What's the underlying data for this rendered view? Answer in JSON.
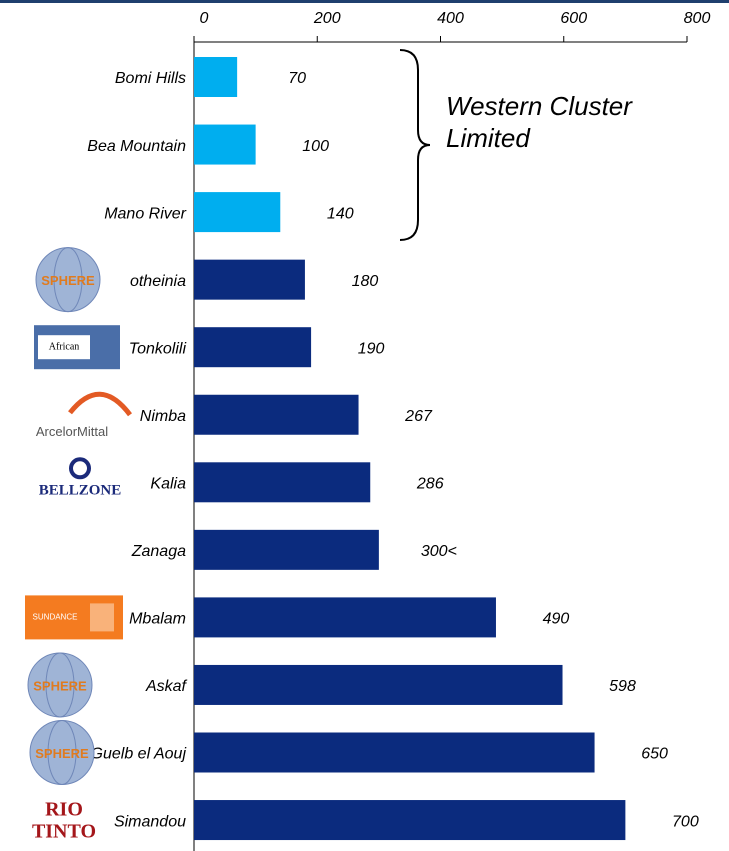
{
  "chart_data": {
    "type": "bar",
    "orientation": "horizontal",
    "categories": [
      "Bomi Hills",
      "Bea Mountain",
      "Mano River",
      "otheinia",
      "Tonkolili",
      "Nimba",
      "Kalia",
      "Zanaga",
      "Mbalam",
      "Askaf",
      "Guelb el Aouj",
      "Simandou"
    ],
    "values": [
      70,
      100,
      140,
      180,
      190,
      267,
      286,
      300,
      490,
      598,
      650,
      700
    ],
    "value_labels": [
      "70",
      "100",
      "140",
      "180",
      "190",
      "267",
      "286",
      "300<",
      "490",
      "598",
      "650",
      "700"
    ],
    "colors": [
      "#00aeef",
      "#00aeef",
      "#00aeef",
      "#0b2b7e",
      "#0b2b7e",
      "#0b2b7e",
      "#0b2b7e",
      "#0b2b7e",
      "#0b2b7e",
      "#0b2b7e",
      "#0b2b7e",
      "#0b2b7e"
    ],
    "xlim": [
      0,
      800
    ],
    "xticks": [
      0,
      200,
      400,
      600,
      800
    ],
    "annotation": [
      "Western Cluster",
      "Limited"
    ],
    "logos": [
      "SPHERE",
      "African",
      "ArcelorMittal",
      "BELLZONE",
      "SUNDANCE",
      "SPHERE",
      "SPHERE",
      "RIO",
      "TINTO"
    ]
  }
}
